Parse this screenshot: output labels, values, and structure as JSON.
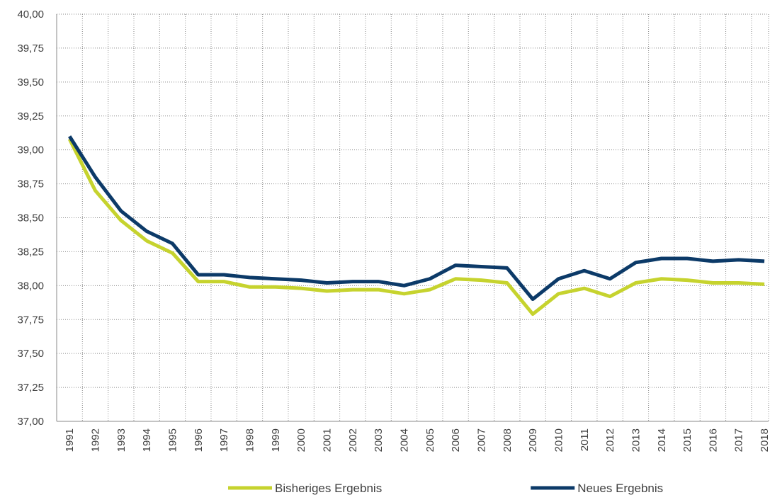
{
  "chart_data": {
    "type": "line",
    "categories": [
      "1991",
      "1992",
      "1993",
      "1994",
      "1995",
      "1996",
      "1997",
      "1998",
      "1999",
      "2000",
      "2001",
      "2002",
      "2003",
      "2004",
      "2005",
      "2006",
      "2007",
      "2008",
      "2009",
      "2010",
      "2011",
      "2012",
      "2013",
      "2014",
      "2015",
      "2016",
      "2017",
      "2018"
    ],
    "series": [
      {
        "name": "Bisheriges Ergebnis",
        "color": "#c6d32e",
        "values": [
          39.08,
          38.7,
          38.48,
          38.33,
          38.24,
          38.03,
          38.03,
          37.99,
          37.99,
          37.98,
          37.96,
          37.97,
          37.97,
          37.94,
          37.97,
          38.05,
          38.04,
          38.02,
          37.79,
          37.94,
          37.98,
          37.92,
          38.02,
          38.05,
          38.04,
          38.02,
          38.02,
          38.01
        ]
      },
      {
        "name": "Neues Ergebnis",
        "color": "#0c3a68",
        "values": [
          39.1,
          38.8,
          38.55,
          38.4,
          38.31,
          38.08,
          38.08,
          38.06,
          38.05,
          38.04,
          38.02,
          38.03,
          38.03,
          38.0,
          38.05,
          38.15,
          38.14,
          38.13,
          37.9,
          38.05,
          38.11,
          38.05,
          38.17,
          38.2,
          38.2,
          38.18,
          38.19,
          38.18
        ]
      }
    ],
    "ylim": [
      37,
      40
    ],
    "yticks": [
      {
        "value": 37,
        "label": "37,00"
      },
      {
        "value": 37.25,
        "label": "37,25"
      },
      {
        "value": 37.5,
        "label": "37,50"
      },
      {
        "value": 37.75,
        "label": "37,75"
      },
      {
        "value": 38,
        "label": "38,00"
      },
      {
        "value": 38.25,
        "label": "38,25"
      },
      {
        "value": 38.5,
        "label": "38,50"
      },
      {
        "value": 38.75,
        "label": "38,75"
      },
      {
        "value": 39,
        "label": "39,00"
      },
      {
        "value": 39.25,
        "label": "39,25"
      },
      {
        "value": 39.5,
        "label": "39,50"
      },
      {
        "value": 39.75,
        "label": "39,75"
      },
      {
        "value": 40,
        "label": "40,00"
      }
    ],
    "grid": true,
    "legend": "bottom"
  }
}
